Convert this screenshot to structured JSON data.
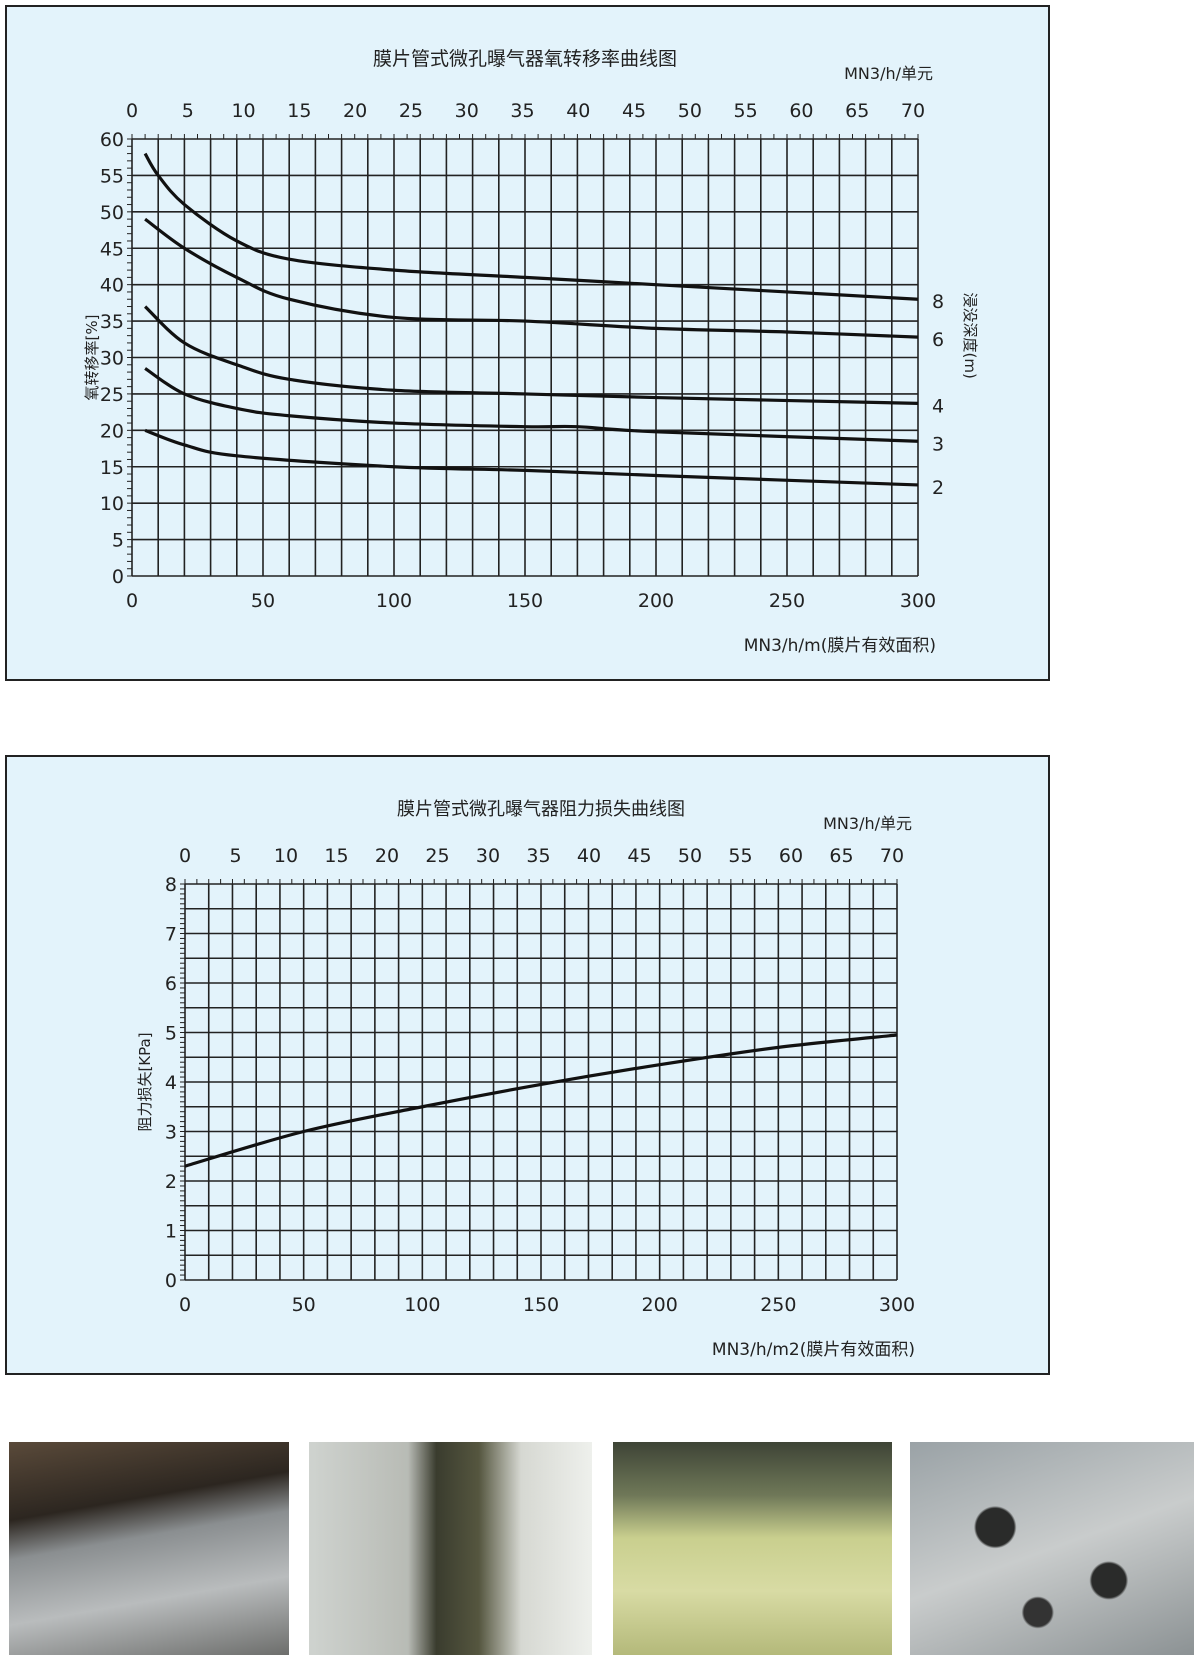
{
  "chart_data": [
    {
      "type": "line",
      "title": "膜片管式微孔曝气器氧转移率曲线图",
      "xlabel": "MN3/h/m(膜片有效面积)",
      "x2label": "MN3/h/单元",
      "ylabel": "氧转移率[%]",
      "right_label": "浸没深度(m)",
      "xlim": [
        0,
        300
      ],
      "ylim": [
        0,
        60
      ],
      "x2lim": [
        0,
        70
      ],
      "xticks": [
        0,
        50,
        100,
        150,
        200,
        250,
        300
      ],
      "x2ticks": [
        0,
        5,
        10,
        15,
        20,
        25,
        30,
        35,
        40,
        45,
        50,
        55,
        60,
        65,
        70
      ],
      "yticks": [
        0,
        5,
        10,
        15,
        20,
        25,
        30,
        35,
        40,
        45,
        50,
        55,
        60
      ],
      "grid": true,
      "series": [
        {
          "name": "8",
          "x": [
            5,
            10,
            20,
            40,
            60,
            100,
            150,
            200,
            250,
            300
          ],
          "y": [
            58,
            55,
            51,
            46,
            43.5,
            42,
            41,
            40,
            39,
            38
          ]
        },
        {
          "name": "6",
          "x": [
            5,
            20,
            40,
            60,
            100,
            150,
            200,
            250,
            300
          ],
          "y": [
            49,
            45,
            41,
            38,
            35.5,
            35,
            34,
            33.5,
            32.8
          ]
        },
        {
          "name": "4",
          "x": [
            5,
            20,
            40,
            60,
            100,
            150,
            200,
            300
          ],
          "y": [
            37,
            32,
            29,
            27,
            25.5,
            25,
            24.5,
            23.7
          ]
        },
        {
          "name": "3",
          "x": [
            5,
            20,
            40,
            60,
            100,
            150,
            170,
            200,
            300
          ],
          "y": [
            28.5,
            25,
            23,
            22,
            21,
            20.5,
            20.5,
            19.8,
            18.5
          ]
        },
        {
          "name": "2",
          "x": [
            5,
            20,
            40,
            100,
            150,
            200,
            300
          ],
          "y": [
            20,
            18,
            16.5,
            15,
            14.5,
            13.8,
            12.5
          ]
        }
      ]
    },
    {
      "type": "line",
      "title": "膜片管式微孔曝气器阻力损失曲线图",
      "xlabel": "MN3/h/m2(膜片有效面积)",
      "x2label": "MN3/h/单元",
      "ylabel": "阻力损失[KPa]",
      "xlim": [
        0,
        300
      ],
      "ylim": [
        0,
        8
      ],
      "x2lim": [
        0,
        70
      ],
      "xticks": [
        0,
        50,
        100,
        150,
        200,
        250,
        300
      ],
      "x2ticks": [
        0,
        5,
        10,
        15,
        20,
        25,
        30,
        35,
        40,
        45,
        50,
        55,
        60,
        65,
        70
      ],
      "yticks": [
        0,
        1,
        2,
        3,
        4,
        5,
        6,
        7,
        8
      ],
      "grid": true,
      "series": [
        {
          "x": [
            0,
            50,
            100,
            150,
            200,
            250,
            300
          ],
          "y": [
            2.3,
            3,
            3.5,
            3.95,
            4.35,
            4.7,
            4.95
          ]
        }
      ]
    }
  ],
  "photos": [
    "aeration-tank-empty",
    "aeration-channel",
    "aeration-tank-bubbling",
    "aeration-tank-surface"
  ]
}
